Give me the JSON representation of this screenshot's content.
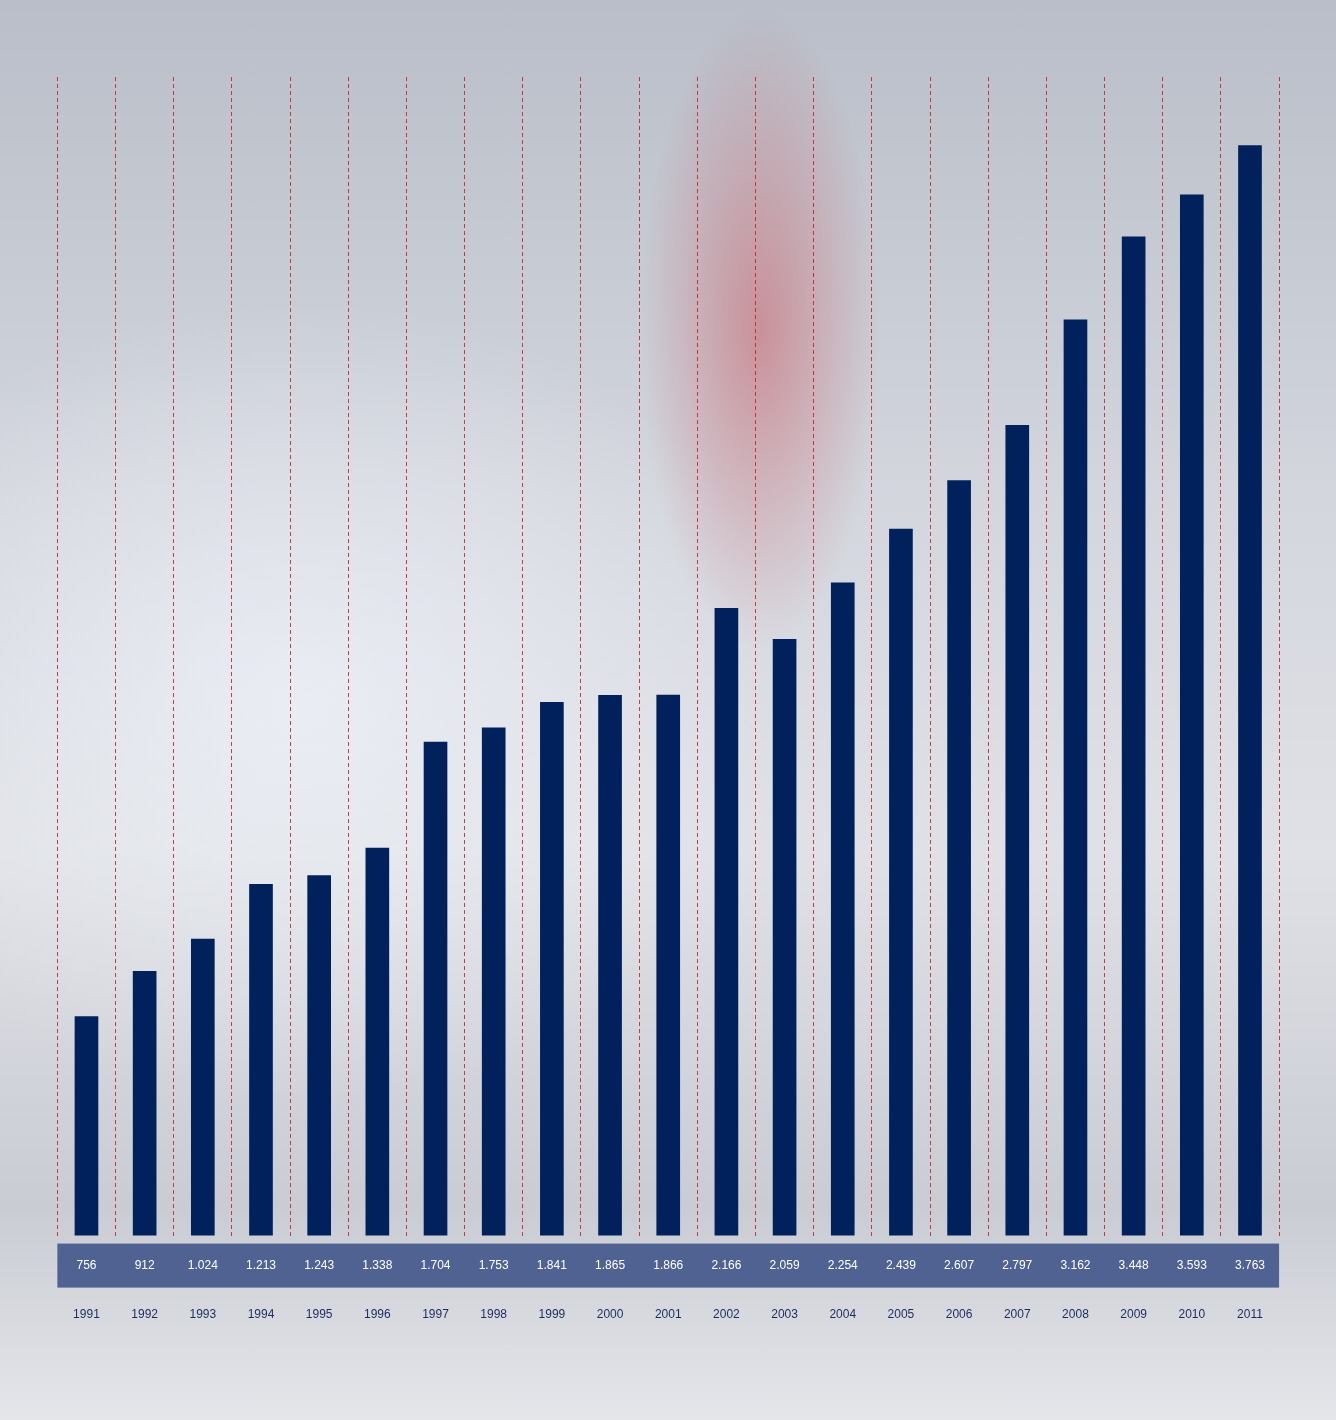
{
  "chart_data": {
    "type": "bar",
    "categories": [
      "1991",
      "1992",
      "1993",
      "1994",
      "1995",
      "1996",
      "1997",
      "1998",
      "1999",
      "2000",
      "2001",
      "2002",
      "2003",
      "2004",
      "2005",
      "2006",
      "2007",
      "2008",
      "2009",
      "2010",
      "2011"
    ],
    "values": [
      756,
      912,
      1024,
      1213,
      1243,
      1338,
      1704,
      1753,
      1841,
      1865,
      1866,
      2166,
      2059,
      2254,
      2439,
      2607,
      2797,
      3162,
      3448,
      3593,
      3763
    ],
    "value_labels": [
      "756",
      "912",
      "1.024",
      "1.213",
      "1.243",
      "1.338",
      "1.704",
      "1.753",
      "1.841",
      "1.865",
      "1.866",
      "2.166",
      "2.059",
      "2.254",
      "2.439",
      "2.607",
      "2.797",
      "3.162",
      "3.448",
      "3.593",
      "3.763"
    ],
    "color": "#00215b",
    "ylim": [
      0,
      4000
    ],
    "grid": true,
    "data_labels": true,
    "tick_labels": "x"
  }
}
